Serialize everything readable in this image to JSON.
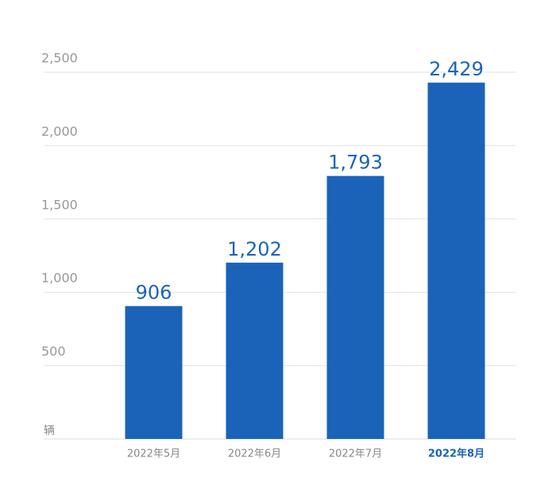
{
  "chart_data": {
    "type": "bar",
    "y_label": "辆",
    "categories": [
      "2022年5月",
      "2022年6月",
      "2022年7月",
      "2022年8月"
    ],
    "values": [
      906,
      1202,
      1793,
      2429
    ],
    "value_labels": [
      "906",
      "1,202",
      "1,793",
      "2,429"
    ],
    "color": "#1b63b8",
    "ylim": [
      0,
      2500
    ],
    "yticks": [
      {
        "value": 500,
        "label": "500"
      },
      {
        "value": 1000,
        "label": "1,000"
      },
      {
        "value": 1500,
        "label": "1,500"
      },
      {
        "value": 2000,
        "label": "2,000"
      },
      {
        "value": 2500,
        "label": "2,500"
      }
    ],
    "grid": true
  }
}
